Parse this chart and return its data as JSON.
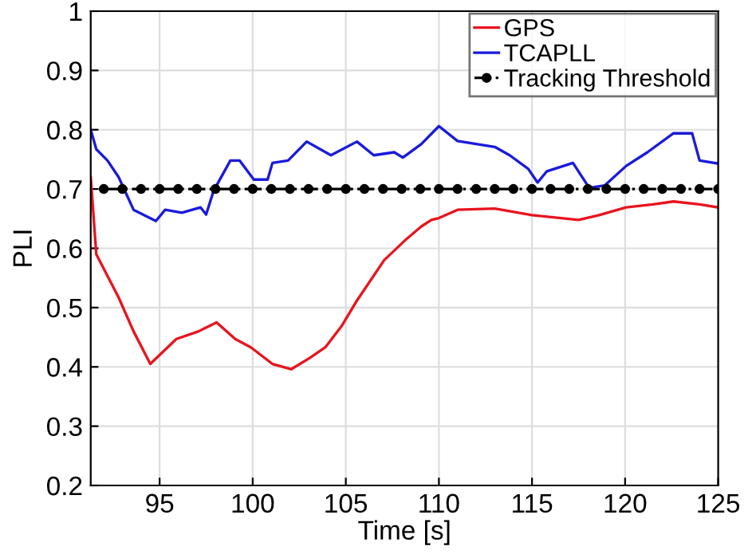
{
  "chart_data": {
    "type": "line",
    "xlabel": "Time [s]",
    "ylabel": "PLI",
    "xlim": [
      91.3,
      125
    ],
    "ylim": [
      0.2,
      1
    ],
    "xticks": [
      95,
      100,
      105,
      110,
      115,
      120,
      125
    ],
    "yticks": [
      0.2,
      0.3,
      0.4,
      0.5,
      0.6,
      0.7,
      0.8,
      0.9,
      1
    ],
    "grid": true,
    "legend": "top right",
    "series": [
      {
        "name": "GPS",
        "color": "#e8141e",
        "x": [
          91.3,
          91.6,
          92.8,
          93.6,
          94.5,
          95.9,
          97.1,
          98.06,
          99.06,
          99.9,
          101.06,
          102.06,
          103.06,
          103.9,
          104.8,
          105.6,
          107.06,
          108.2,
          109.06,
          109.6,
          110,
          111,
          113,
          115,
          117.5,
          118.6,
          120.06,
          121.5,
          122.6,
          124,
          125
        ],
        "values": [
          0.72,
          0.59,
          0.517,
          0.46,
          0.405,
          0.447,
          0.46,
          0.475,
          0.447,
          0.433,
          0.405,
          0.396,
          0.415,
          0.433,
          0.47,
          0.512,
          0.58,
          0.614,
          0.637,
          0.648,
          0.651,
          0.665,
          0.667,
          0.656,
          0.648,
          0.656,
          0.669,
          0.674,
          0.679,
          0.674,
          0.669
        ]
      },
      {
        "name": "TCAPLL",
        "color": "#1a1adc",
        "x": [
          91.3,
          91.6,
          92.2,
          92.8,
          93.6,
          94.8,
          95.3,
          96.2,
          97.2,
          97.5,
          97.9,
          98.8,
          99.3,
          100.06,
          100.8,
          101.06,
          101.9,
          102.9,
          104.2,
          105.6,
          106.5,
          107.6,
          108.06,
          109.06,
          110,
          111,
          113,
          113.8,
          114.8,
          115.3,
          115.8,
          117.2,
          118.07,
          118.9,
          120.06,
          121.2,
          122.6,
          123.6,
          124,
          125
        ],
        "values": [
          0.8,
          0.767,
          0.748,
          0.72,
          0.665,
          0.646,
          0.665,
          0.66,
          0.669,
          0.657,
          0.697,
          0.748,
          0.748,
          0.716,
          0.716,
          0.744,
          0.748,
          0.78,
          0.757,
          0.78,
          0.757,
          0.762,
          0.753,
          0.776,
          0.806,
          0.781,
          0.771,
          0.757,
          0.734,
          0.711,
          0.73,
          0.744,
          0.702,
          0.706,
          0.739,
          0.762,
          0.794,
          0.794,
          0.748,
          0.743
        ]
      },
      {
        "name": "Tracking Threshold",
        "color": "#000000",
        "marker": "circle",
        "line_style": "dashed",
        "x": [
          92,
          93,
          94,
          95,
          96,
          97,
          98,
          99,
          100,
          101,
          102,
          103,
          104,
          105,
          106,
          107,
          108,
          109,
          110,
          111,
          112,
          113,
          114,
          115,
          116,
          117,
          118,
          119,
          120,
          121,
          122,
          123,
          124,
          125
        ],
        "values": [
          0.7,
          0.7,
          0.7,
          0.7,
          0.7,
          0.7,
          0.7,
          0.7,
          0.7,
          0.7,
          0.7,
          0.7,
          0.7,
          0.7,
          0.7,
          0.7,
          0.7,
          0.7,
          0.7,
          0.7,
          0.7,
          0.7,
          0.7,
          0.7,
          0.7,
          0.7,
          0.7,
          0.7,
          0.7,
          0.7,
          0.7,
          0.7,
          0.7,
          0.7
        ]
      }
    ]
  }
}
